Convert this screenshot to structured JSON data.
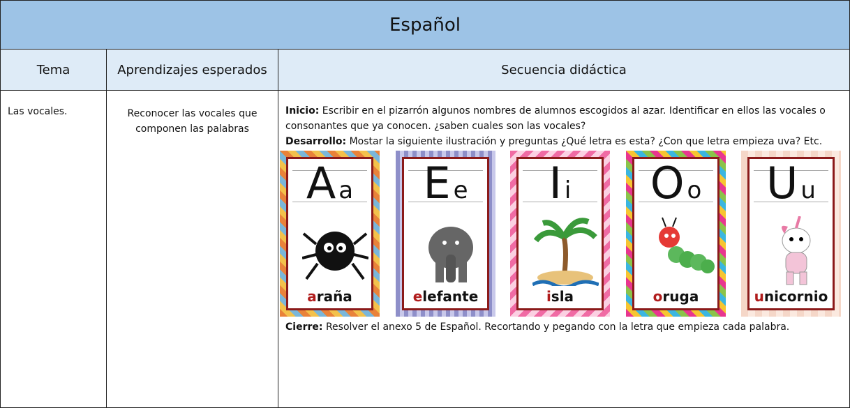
{
  "header": {
    "title": "Español"
  },
  "table": {
    "headers": [
      "Tema",
      "Aprendizajes esperados",
      "Secuencia didáctica"
    ],
    "rows": [
      {
        "tema": "Las vocales.",
        "aprendizajes": "Reconocer las vocales que componen las palabras",
        "secuencia": {
          "inicio": {
            "label": "Inicio:",
            "text": "Escribir en el pizarrón algunos nombres de alumnos escogidos al azar.  Identificar en ellos las vocales o consonantes que ya conocen. ¿saben cuales son las vocales?"
          },
          "desarrollo": {
            "label": "Desarrollo:",
            "text": "Mostar la siguiente ilustración y preguntas ¿Qué letra es esta? ¿Con que letra empieza uva? Etc."
          },
          "cards": [
            {
              "upper": "A",
              "lower": "a",
              "word": "araña"
            },
            {
              "upper": "E",
              "lower": "e",
              "word": "elefante"
            },
            {
              "upper": "I",
              "lower": "i",
              "word": "isla"
            },
            {
              "upper": "O",
              "lower": "o",
              "word": "oruga"
            },
            {
              "upper": "U",
              "lower": "u",
              "word": "unicornio"
            }
          ],
          "cierre": {
            "label": "Cierre:",
            "text": "Resolver el anexo 5 de Español. Recortando y pegando con la letra que empieza cada palabra."
          }
        }
      }
    ]
  }
}
